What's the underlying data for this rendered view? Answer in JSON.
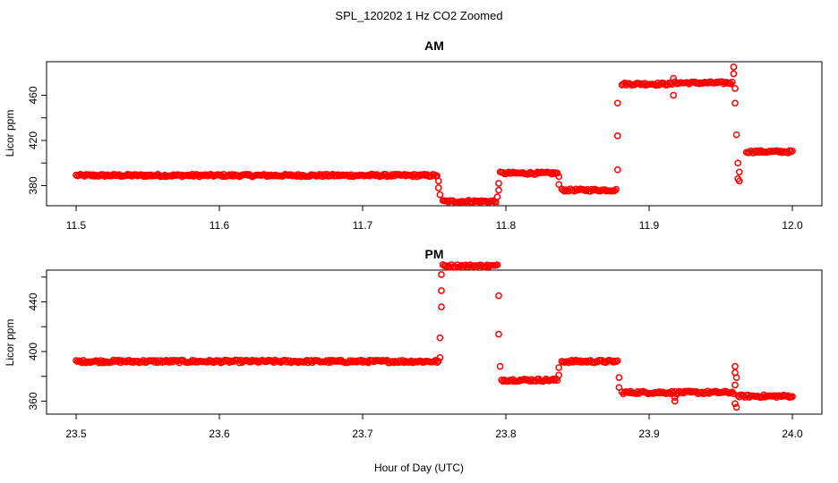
{
  "title": "SPL_120202  1 Hz CO2 Zoomed",
  "xlabel": "Hour of Day (UTC)",
  "chart_data": [
    {
      "type": "scatter",
      "title": "AM",
      "xlabel": "",
      "ylabel": "Licor ppm",
      "xlim": [
        11.5,
        12.0
      ],
      "ylim": [
        370,
        475
      ],
      "xticks": [
        "11.5",
        "11.6",
        "11.7",
        "11.8",
        "11.9",
        "12.0"
      ],
      "yticks": [
        "380",
        "420",
        "460"
      ],
      "color": "#ff0000",
      "marker": "open-circle",
      "segments": [
        {
          "x": [
            11.5,
            11.752
          ],
          "y": 389
        },
        {
          "x": [
            11.756,
            11.793
          ],
          "y": 366
        },
        {
          "x": [
            11.796,
            11.836
          ],
          "y": 391
        },
        {
          "x": [
            11.839,
            11.877
          ],
          "y": 376
        },
        {
          "x": [
            11.881,
            11.916
          ],
          "y": 470
        },
        {
          "x": [
            11.918,
            11.958
          ],
          "y": 471
        },
        {
          "x": [
            11.968,
            12.0
          ],
          "y": 410
        }
      ],
      "transition_points": [
        {
          "x": 11.753,
          "y": 384
        },
        {
          "x": 11.753,
          "y": 378
        },
        {
          "x": 11.754,
          "y": 372
        },
        {
          "x": 11.794,
          "y": 370
        },
        {
          "x": 11.795,
          "y": 376
        },
        {
          "x": 11.795,
          "y": 382
        },
        {
          "x": 11.837,
          "y": 388
        },
        {
          "x": 11.837,
          "y": 381
        },
        {
          "x": 11.878,
          "y": 394
        },
        {
          "x": 11.878,
          "y": 424
        },
        {
          "x": 11.878,
          "y": 453
        },
        {
          "x": 11.917,
          "y": 460
        },
        {
          "x": 11.917,
          "y": 475
        },
        {
          "x": 11.959,
          "y": 485
        },
        {
          "x": 11.959,
          "y": 479
        },
        {
          "x": 11.96,
          "y": 466
        },
        {
          "x": 11.96,
          "y": 453
        },
        {
          "x": 11.961,
          "y": 425
        },
        {
          "x": 11.962,
          "y": 400
        },
        {
          "x": 11.963,
          "y": 392
        },
        {
          "x": 11.962,
          "y": 386
        },
        {
          "x": 11.963,
          "y": 384
        }
      ]
    },
    {
      "type": "scatter",
      "title": "PM",
      "xlabel": "",
      "ylabel": "Licor ppm",
      "xlim": [
        23.5,
        24.0
      ],
      "ylim": [
        350,
        470
      ],
      "xticks": [
        "23.5",
        "23.6",
        "23.7",
        "23.8",
        "23.9",
        "24.0"
      ],
      "yticks": [
        "360",
        "400",
        "440"
      ],
      "color": "#ff0000",
      "marker": "open-circle",
      "segments": [
        {
          "x": [
            23.5,
            23.753
          ],
          "y": 392
        },
        {
          "x": [
            23.756,
            23.794
          ],
          "y": 469
        },
        {
          "x": [
            23.797,
            23.836
          ],
          "y": 377
        },
        {
          "x": [
            23.839,
            23.878
          ],
          "y": 392
        },
        {
          "x": [
            23.881,
            23.959
          ],
          "y": 367
        },
        {
          "x": [
            23.962,
            24.0
          ],
          "y": 364
        }
      ],
      "transition_points": [
        {
          "x": 23.754,
          "y": 395
        },
        {
          "x": 23.754,
          "y": 411
        },
        {
          "x": 23.755,
          "y": 436
        },
        {
          "x": 23.755,
          "y": 449
        },
        {
          "x": 23.755,
          "y": 462
        },
        {
          "x": 23.795,
          "y": 445
        },
        {
          "x": 23.795,
          "y": 414
        },
        {
          "x": 23.796,
          "y": 388
        },
        {
          "x": 23.837,
          "y": 387
        },
        {
          "x": 23.837,
          "y": 381
        },
        {
          "x": 23.879,
          "y": 379
        },
        {
          "x": 23.879,
          "y": 371
        },
        {
          "x": 23.918,
          "y": 360
        },
        {
          "x": 23.918,
          "y": 363
        },
        {
          "x": 23.96,
          "y": 388
        },
        {
          "x": 23.96,
          "y": 383
        },
        {
          "x": 23.961,
          "y": 379
        },
        {
          "x": 23.96,
          "y": 373
        },
        {
          "x": 23.96,
          "y": 358
        },
        {
          "x": 23.961,
          "y": 355
        }
      ]
    }
  ]
}
